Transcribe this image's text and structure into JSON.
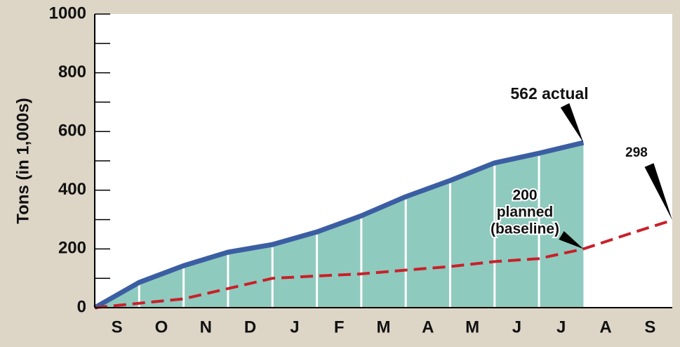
{
  "chart_data": {
    "type": "line",
    "y_label": "Tons (in 1,000s)",
    "categories": [
      "S",
      "O",
      "N",
      "D",
      "J",
      "F",
      "M",
      "A",
      "M",
      "J",
      "J",
      "A",
      "S"
    ],
    "series": [
      {
        "name": "actual",
        "color": "#3b5ea3",
        "fill": "#8fcabe",
        "dashed": false,
        "values": [
          86,
          143,
          189,
          215,
          258,
          313,
          378,
          433,
          493,
          526,
          562,
          null,
          null
        ]
      },
      {
        "name": "planned",
        "color": "#c8202a",
        "dashed": true,
        "values": [
          15,
          30,
          65,
          100,
          108,
          115,
          128,
          140,
          157,
          167,
          200,
          250,
          298
        ]
      }
    ],
    "annotations": [
      {
        "lines": [
          "562 actual"
        ],
        "series": 0,
        "index": 10
      },
      {
        "lines": [
          "200",
          "planned",
          "(baseline)"
        ],
        "series": 1,
        "index": 10
      },
      {
        "lines": [
          "298"
        ],
        "series": 1,
        "index": 12
      }
    ],
    "ylim": [
      0,
      1000
    ],
    "yticks": [
      0,
      200,
      400,
      600,
      800,
      1000
    ],
    "yminor": [
      100,
      300,
      500,
      700,
      900
    ]
  }
}
